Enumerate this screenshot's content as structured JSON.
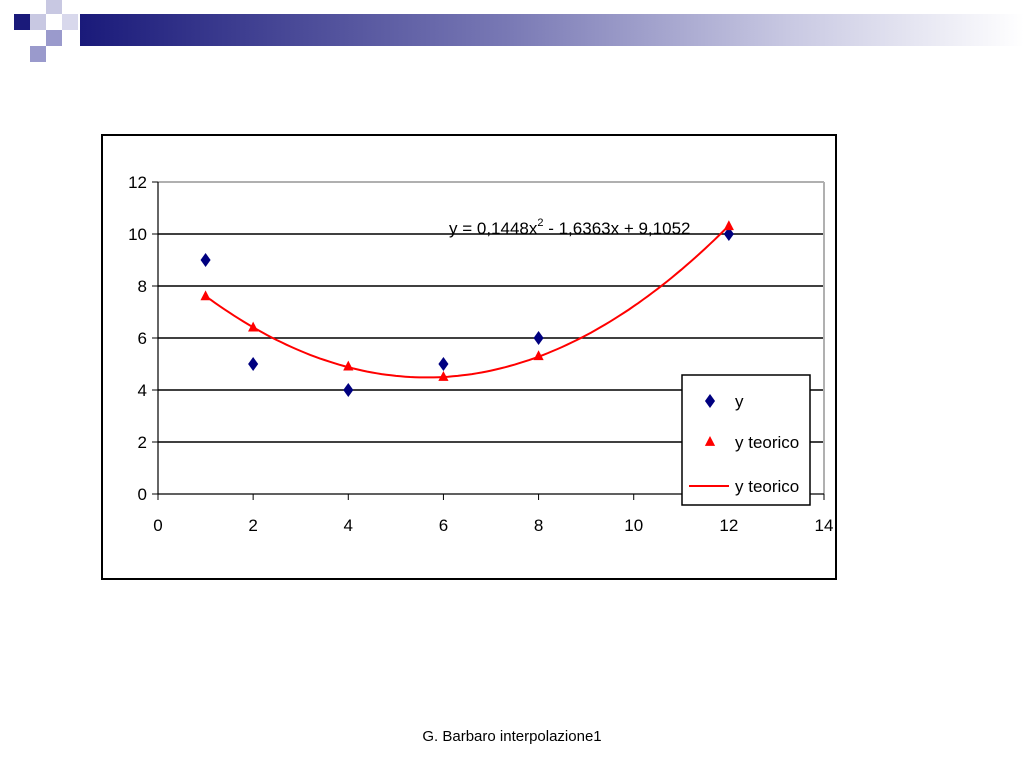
{
  "slide": {
    "footer": "G. Barbaro interpolazione1"
  },
  "colors": {
    "accent": "#1a1a7a",
    "accent_light": "#9a9acc",
    "series_y": "#000080",
    "series_teorico": "#ff0000"
  },
  "chart_data": {
    "type": "scatter",
    "title": "",
    "xlabel": "",
    "ylabel": "",
    "xlim": [
      0,
      14
    ],
    "ylim": [
      0,
      12
    ],
    "x_ticks": [
      0,
      2,
      4,
      6,
      8,
      10,
      12,
      14
    ],
    "y_ticks": [
      0,
      2,
      4,
      6,
      8,
      10,
      12
    ],
    "grid": "horizontal",
    "legend_position": "bottom-right",
    "trendline_label": {
      "prefix": "y = 0,1448x",
      "superscript": "2",
      "suffix": " - 1,6363x + 9,1052"
    },
    "trendline": {
      "type": "polynomial",
      "degree": 2,
      "coefficients": [
        0.1448,
        -1.6363,
        9.1052
      ]
    },
    "series": [
      {
        "name": "y",
        "marker": "diamond",
        "color": "#000080",
        "points": [
          [
            1,
            9
          ],
          [
            2,
            5
          ],
          [
            4,
            4
          ],
          [
            6,
            5
          ],
          [
            8,
            6
          ],
          [
            12,
            10
          ]
        ]
      },
      {
        "name": "y teorico",
        "marker": "triangle",
        "color": "#ff0000",
        "points": [
          [
            1,
            7.6
          ],
          [
            2,
            6.4
          ],
          [
            4,
            4.9
          ],
          [
            6,
            4.5
          ],
          [
            8,
            5.3
          ],
          [
            12,
            10.3
          ]
        ]
      },
      {
        "name": "y teorico",
        "marker": "line",
        "color": "#ff0000"
      }
    ]
  }
}
